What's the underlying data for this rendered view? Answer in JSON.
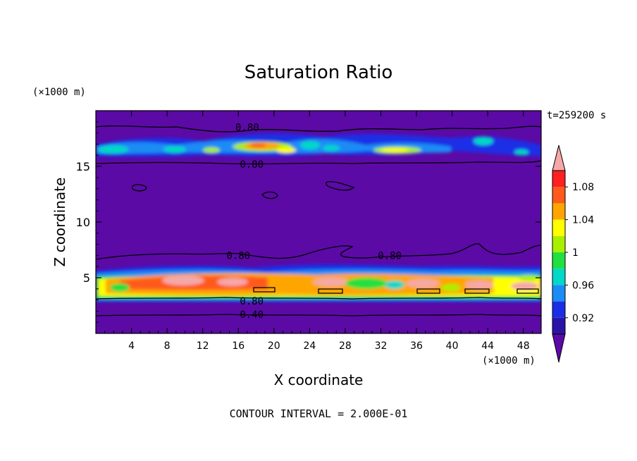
{
  "chart_data": {
    "type": "heatmap",
    "title": "Saturation Ratio",
    "xlabel": "X coordinate",
    "ylabel": "Z coordinate",
    "x_unit": "(×1000 m)",
    "y_unit": "(×1000 m)",
    "xlim": [
      0,
      50
    ],
    "ylim": [
      0,
      20
    ],
    "x_ticks": [
      4,
      8,
      12,
      16,
      20,
      24,
      28,
      32,
      36,
      40,
      44,
      48
    ],
    "y_ticks": [
      5,
      10,
      15
    ],
    "time_label": "t=259200 s",
    "footer": "CONTOUR INTERVAL = 2.000E-01",
    "colorbar": {
      "tick_labels": [
        "0.92",
        "0.96",
        "1",
        "1.04",
        "1.08"
      ],
      "tick_values": [
        0.92,
        0.96,
        1.0,
        1.04,
        1.08
      ],
      "levels": [
        0.9,
        0.92,
        0.94,
        0.96,
        0.98,
        1.0,
        1.02,
        1.04,
        1.06,
        1.08,
        1.1
      ],
      "colors": [
        "#5b0aa6",
        "#2a14a8",
        "#1b2ee6",
        "#1a8cf5",
        "#00d8c8",
        "#22e040",
        "#a8f000",
        "#ffff00",
        "#ffa500",
        "#ff5a1a",
        "#ff2020",
        "#f5a8a8"
      ]
    },
    "contour_labels": [
      {
        "text": "0.80",
        "x": 17.0,
        "y": 18.5
      },
      {
        "text": "0.80",
        "x": 17.5,
        "y": 15.2
      },
      {
        "text": "0.80",
        "x": 16.0,
        "y": 7.0
      },
      {
        "text": "0.80",
        "x": 33.0,
        "y": 7.0
      },
      {
        "text": "0.80",
        "x": 17.5,
        "y": 2.9
      },
      {
        "text": "0.40",
        "x": 17.5,
        "y": 1.7
      }
    ]
  }
}
